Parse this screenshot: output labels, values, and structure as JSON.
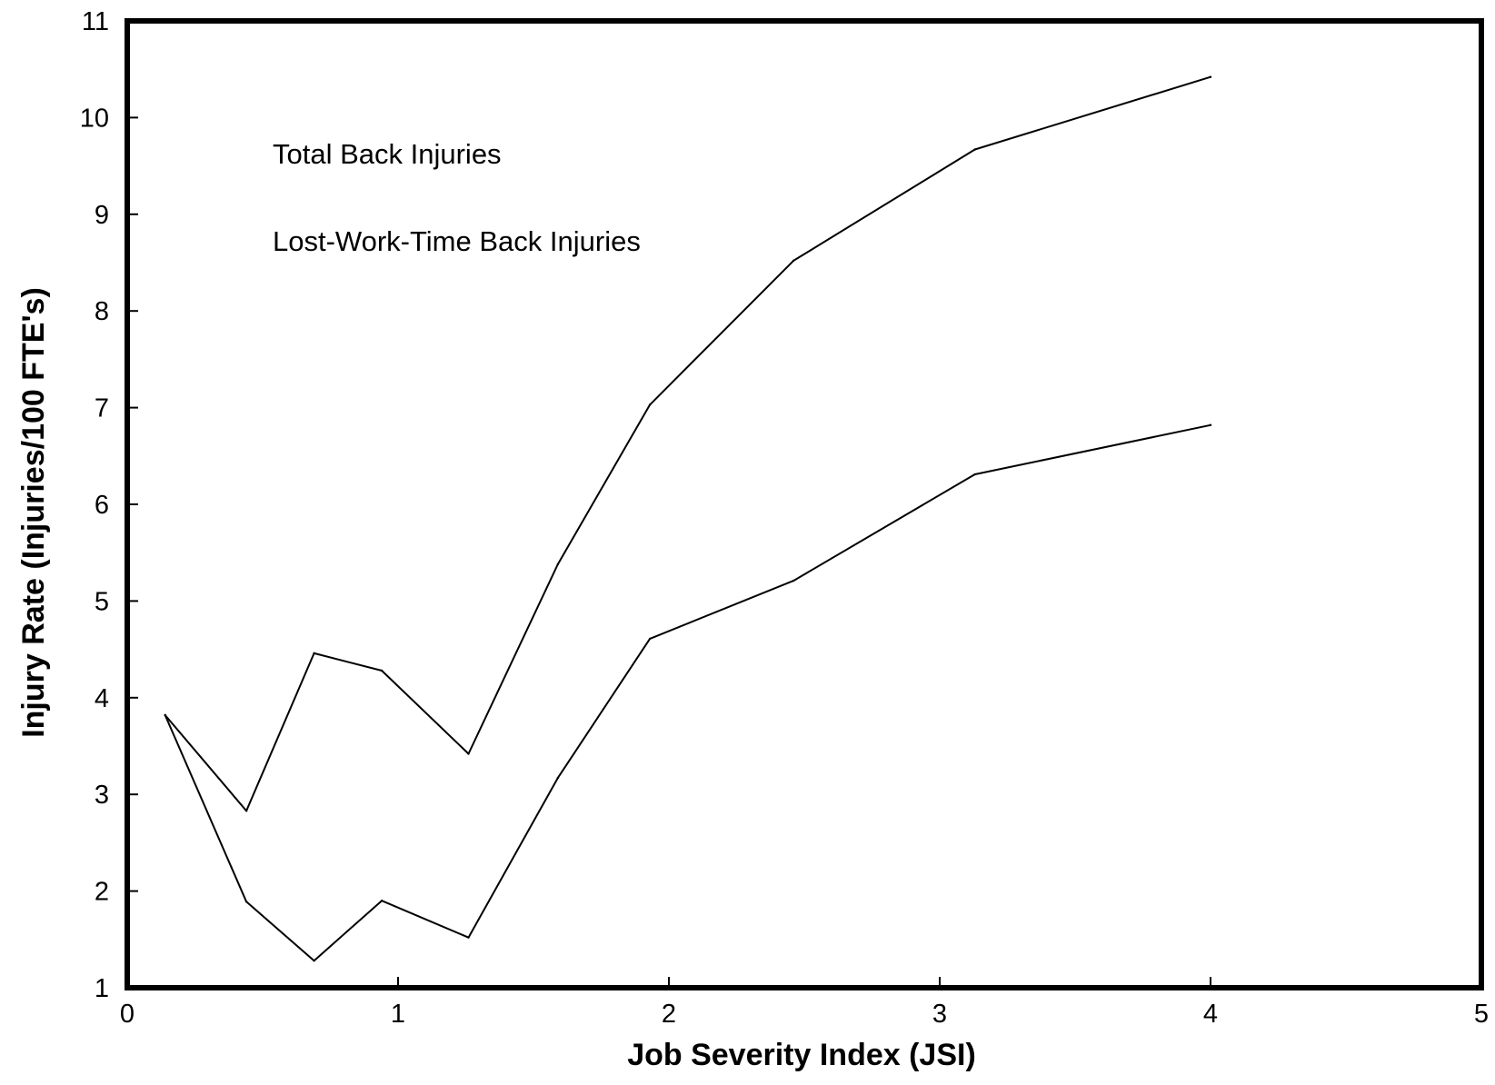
{
  "chart_data": {
    "type": "line",
    "title": "",
    "xlabel": "Job Severity Index (JSI)",
    "ylabel": "Injury Rate (Injuries/100 FTE's)",
    "xlim": [
      0,
      5
    ],
    "ylim": [
      1,
      11
    ],
    "xticks": [
      0,
      1,
      2,
      3,
      4,
      5
    ],
    "yticks": [
      1,
      2,
      3,
      4,
      5,
      6,
      7,
      8,
      9,
      10,
      11
    ],
    "grid": false,
    "legend": "none",
    "line_color": "#000000",
    "annotations": [
      {
        "text": "Total Back Injuries"
      },
      {
        "text": "Lost-Work-Time Back Injuries"
      }
    ],
    "series": [
      {
        "x": [
          0.14,
          0.44,
          0.69,
          0.94,
          1.26,
          1.59,
          1.93,
          2.46,
          3.13,
          4.0
        ],
        "y": [
          3.82,
          2.83,
          4.46,
          4.28,
          3.42,
          5.38,
          7.03,
          8.52,
          9.67,
          10.42
        ]
      },
      {
        "x": [
          0.14,
          0.44,
          0.69,
          0.94,
          1.26,
          1.59,
          1.93,
          2.46,
          3.13,
          4.0
        ],
        "y": [
          3.82,
          1.89,
          1.28,
          1.9,
          1.52,
          3.17,
          4.61,
          5.21,
          6.31,
          6.82
        ]
      }
    ]
  }
}
